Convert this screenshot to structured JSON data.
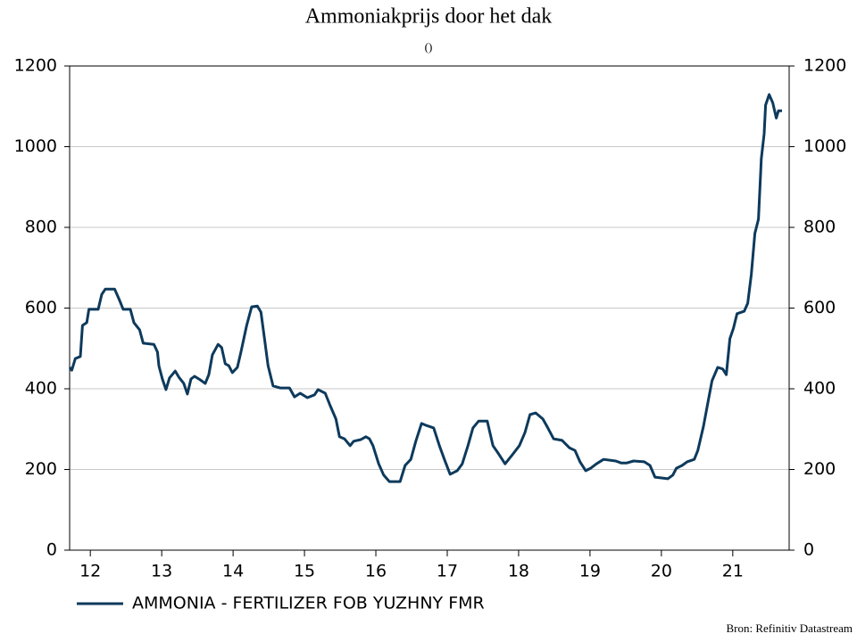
{
  "chart_data": {
    "type": "line",
    "title": "Ammoniakprijs door het dak",
    "subtitle": "()",
    "source": "Bron: Refinitiv Datastream",
    "x": [
      2012.21,
      2012.24,
      2012.29,
      2012.36,
      2012.39,
      2012.45,
      2012.48,
      2012.61,
      2012.66,
      2012.71,
      2012.84,
      2012.9,
      2012.96,
      2013.06,
      2013.11,
      2013.19,
      2013.24,
      2013.39,
      2013.44,
      2013.46,
      2013.51,
      2013.56,
      2013.61,
      2013.69,
      2013.74,
      2013.81,
      2013.86,
      2013.91,
      2013.96,
      2014.04,
      2014.11,
      2014.16,
      2014.21,
      2014.29,
      2014.34,
      2014.39,
      2014.44,
      2014.49,
      2014.56,
      2014.61,
      2014.69,
      2014.76,
      2014.84,
      2014.89,
      2014.94,
      2014.99,
      2015.06,
      2015.16,
      2015.29,
      2015.36,
      2015.44,
      2015.54,
      2015.64,
      2015.69,
      2015.79,
      2015.86,
      2015.94,
      2015.99,
      2016.06,
      2016.14,
      2016.19,
      2016.29,
      2016.36,
      2016.41,
      2016.46,
      2016.54,
      2016.61,
      2016.69,
      2016.84,
      2016.91,
      2016.99,
      2017.06,
      2017.14,
      2017.21,
      2017.31,
      2017.39,
      2017.46,
      2017.54,
      2017.64,
      2017.71,
      2017.79,
      2017.86,
      2017.94,
      2018.06,
      2018.14,
      2018.21,
      2018.31,
      2018.41,
      2018.51,
      2018.59,
      2018.66,
      2018.74,
      2018.84,
      2018.91,
      2018.99,
      2019.11,
      2019.21,
      2019.29,
      2019.36,
      2019.44,
      2019.51,
      2019.59,
      2019.69,
      2019.86,
      2019.94,
      2020.01,
      2020.11,
      2020.26,
      2020.34,
      2020.41,
      2020.59,
      2020.66,
      2020.71,
      2020.79,
      2020.86,
      2020.96,
      2021.01,
      2021.09,
      2021.16,
      2021.21,
      2021.29,
      2021.36,
      2021.41,
      2021.46,
      2021.51,
      2021.56,
      2021.66,
      2021.71,
      2021.76,
      2021.81,
      2021.86,
      2021.9,
      2021.94,
      2021.96,
      2022.01,
      2022.06,
      2022.11,
      2022.14,
      2022.19
    ],
    "series": [
      {
        "name": "AMMONIA - FERTILIZER FOB YUZHNY FMR",
        "color": "#0d3a5c",
        "values": [
          453,
          446,
          475,
          480,
          557,
          564,
          597,
          597,
          634,
          647,
          647,
          623,
          597,
          597,
          564,
          546,
          513,
          510,
          491,
          457,
          424,
          398,
          427,
          444,
          429,
          413,
          387,
          424,
          431,
          422,
          413,
          435,
          484,
          510,
          502,
          462,
          457,
          440,
          453,
          491,
          557,
          603,
          605,
          590,
          524,
          457,
          407,
          402,
          402,
          380,
          389,
          378,
          385,
          398,
          389,
          358,
          325,
          281,
          276,
          259,
          270,
          274,
          281,
          276,
          259,
          214,
          186,
          170,
          170,
          210,
          225,
          270,
          314,
          309,
          303,
          259,
          225,
          188,
          197,
          214,
          259,
          303,
          320,
          320,
          259,
          241,
          214,
          236,
          259,
          292,
          336,
          340,
          325,
          303,
          276,
          272,
          254,
          247,
          219,
          197,
          203,
          214,
          225,
          221,
          216,
          216,
          221,
          219,
          210,
          181,
          177,
          186,
          203,
          210,
          219,
          225,
          247,
          307,
          373,
          420,
          453,
          449,
          435,
          524,
          550,
          586,
          592,
          612,
          683,
          785,
          820,
          970,
          1032,
          1103,
          1129,
          1109,
          1071,
          1089,
          1089
        ]
      }
    ],
    "xlim": [
      2012.21,
      2022.29
    ],
    "xticks": [
      {
        "value": 2012.5,
        "label": "12"
      },
      {
        "value": 2013.5,
        "label": "13"
      },
      {
        "value": 2014.5,
        "label": "14"
      },
      {
        "value": 2015.5,
        "label": "15"
      },
      {
        "value": 2016.5,
        "label": "16"
      },
      {
        "value": 2017.5,
        "label": "17"
      },
      {
        "value": 2018.5,
        "label": "18"
      },
      {
        "value": 2019.5,
        "label": "19"
      },
      {
        "value": 2020.5,
        "label": "20"
      },
      {
        "value": 2021.5,
        "label": "21"
      }
    ],
    "ylim": [
      0,
      1200
    ],
    "yticks": [
      0,
      200,
      400,
      600,
      800,
      1000,
      1200
    ],
    "y2lim": [
      0,
      1200
    ],
    "y2ticks": [
      0,
      200,
      400,
      600,
      800,
      1000,
      1200
    ],
    "grid": true
  }
}
